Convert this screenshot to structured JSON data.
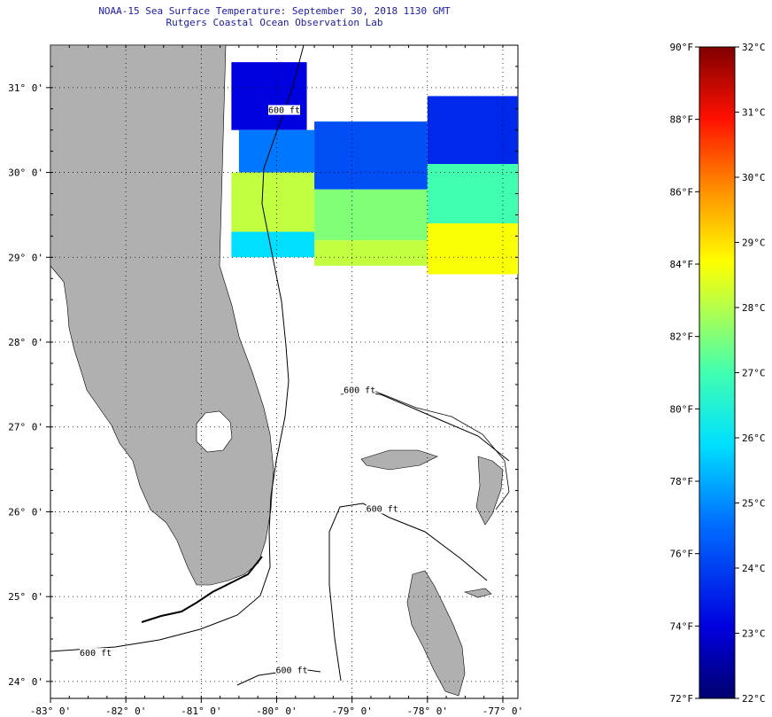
{
  "header": {
    "title": "NOAA-15 Sea Surface Temperature:  September 30, 2018 1130 GMT",
    "subtitle": "Rutgers Coastal Ocean Observation Lab"
  },
  "chart_data": {
    "type": "heatmap",
    "title": "NOAA-15 Sea Surface Temperature:  September 30, 2018 1130 GMT",
    "subtitle": "Rutgers Coastal Ocean Observation Lab",
    "xlim": [
      -83.0,
      -76.8
    ],
    "ylim": [
      23.8,
      31.5
    ],
    "x_ticks": [
      -83,
      -82,
      -81,
      -80,
      -79,
      -78,
      -77
    ],
    "x_tick_labels": [
      "-83° 0'",
      "-82° 0'",
      "-81° 0'",
      "-80° 0'",
      "-79° 0'",
      "-78° 0'",
      "-77° 0'"
    ],
    "y_ticks": [
      31,
      30,
      29,
      28,
      27,
      26,
      25,
      24
    ],
    "y_tick_labels": [
      "31° 0'",
      "30° 0'",
      "29° 0'",
      "28° 0'",
      "27° 0'",
      "26° 0'",
      "25° 0'",
      "24° 0'"
    ],
    "grid": true,
    "isobath_label": "600 ft",
    "isobath_label_positions": [
      [
        -79.8,
        24.1
      ],
      [
        -82.4,
        24.3
      ],
      [
        -78.9,
        27.4
      ],
      [
        -78.6,
        26.0
      ],
      [
        -79.9,
        30.7
      ]
    ],
    "colorbar": {
      "f_labels": [
        "90°F",
        "88°F",
        "86°F",
        "84°F",
        "82°F",
        "80°F",
        "78°F",
        "76°F",
        "74°F",
        "72°F"
      ],
      "f_values": [
        90,
        88,
        86,
        84,
        82,
        80,
        78,
        76,
        74,
        72
      ],
      "c_labels": [
        "32°C",
        "31°C",
        "30°C",
        "29°C",
        "28°C",
        "27°C",
        "26°C",
        "25°C",
        "24°C",
        "23°C",
        "22°C"
      ],
      "c_values": [
        32,
        31,
        30,
        29,
        28,
        27,
        26,
        25,
        24,
        23,
        22
      ],
      "range_f": [
        72,
        90
      ],
      "range_c": [
        22,
        32
      ]
    },
    "sst_regions_f": [
      {
        "lon": [
          -80.6,
          -79.6
        ],
        "lat": [
          30.5,
          31.3
        ],
        "temp_f": 74
      },
      {
        "lon": [
          -80.5,
          -79.5
        ],
        "lat": [
          30.0,
          30.5
        ],
        "temp_f": 77
      },
      {
        "lon": [
          -80.6,
          -79.5
        ],
        "lat": [
          29.3,
          30.0
        ],
        "temp_f": 83
      },
      {
        "lon": [
          -80.6,
          -79.5
        ],
        "lat": [
          29.0,
          29.3
        ],
        "temp_f": 79
      },
      {
        "lon": [
          -79.5,
          -78.0
        ],
        "lat": [
          29.8,
          30.6
        ],
        "temp_f": 76
      },
      {
        "lon": [
          -79.5,
          -78.0
        ],
        "lat": [
          29.2,
          29.8
        ],
        "temp_f": 82
      },
      {
        "lon": [
          -79.5,
          -78.0
        ],
        "lat": [
          28.9,
          29.2
        ],
        "temp_f": 83
      },
      {
        "lon": [
          -78.0,
          -76.8
        ],
        "lat": [
          30.1,
          30.9
        ],
        "temp_f": 75
      },
      {
        "lon": [
          -78.0,
          -76.8
        ],
        "lat": [
          29.4,
          30.1
        ],
        "temp_f": 81
      },
      {
        "lon": [
          -78.0,
          -76.8
        ],
        "lat": [
          28.8,
          29.4
        ],
        "temp_f": 84
      }
    ],
    "land_color": "#b0b0b0",
    "colormap": [
      "#7f0000",
      "#ff0000",
      "#ff8000",
      "#ffff00",
      "#80ff80",
      "#00ffff",
      "#0080ff",
      "#0000ff",
      "#00007f"
    ]
  }
}
